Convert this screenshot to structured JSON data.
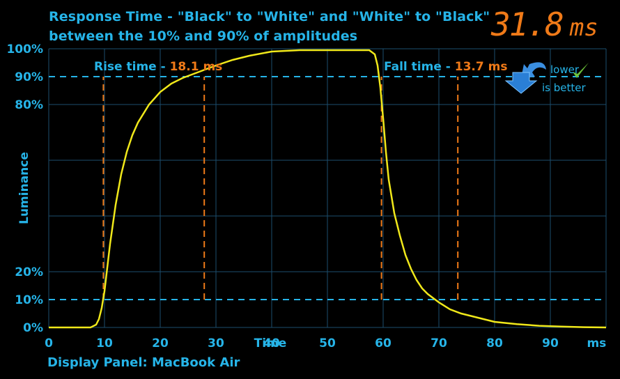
{
  "header": {
    "title_line1": "Response Time - \"Black\" to \"White\" and \"White\" to \"Black\"",
    "title_line2": "between the 10% and 90% of amplitudes",
    "readout_value": "31.8",
    "readout_unit": "ms"
  },
  "footer": {
    "panel_label": "Display Panel: MacBook Air"
  },
  "badge": {
    "line1": "lower",
    "line2": "is better",
    "icon": "down-arrow-icon",
    "check": "check-icon"
  },
  "annotations": {
    "rise_label": "Rise time - ",
    "rise_value": "18.1 ms",
    "fall_label": "Fall time - ",
    "fall_value": "13.7 ms"
  },
  "colors": {
    "background": "#000000",
    "axis_text": "#26b4e8",
    "grid": "#1c4e6e",
    "threshold_lines": "#26b4e8",
    "curve": "#f0e81a",
    "markers": "#f07a18"
  },
  "chart_data": {
    "type": "line",
    "title": "Response Time - \"Black\" to \"White\" and \"White\" to \"Black\" between the 10% and 90% of amplitudes",
    "xlabel": "Time",
    "ylabel": "Luminance",
    "xlim": [
      0,
      100
    ],
    "ylim": [
      0,
      100
    ],
    "x_ticks": [
      "0",
      "10",
      "20",
      "30",
      "40",
      "50",
      "60",
      "70",
      "80",
      "90",
      "ms"
    ],
    "y_ticks": [
      "0%",
      "10%",
      "20%",
      "80%",
      "90%",
      "100%"
    ],
    "grid": true,
    "threshold_lines": [
      10,
      90
    ],
    "markers_x": [
      9.8,
      27.9,
      59.7,
      73.4
    ],
    "series": [
      {
        "x": [
          0,
          7.5,
          8.5,
          9,
          9.5,
          10,
          11,
          12,
          13,
          14,
          15,
          16,
          18,
          20,
          22,
          24,
          26,
          28,
          30,
          33,
          36,
          40,
          45,
          50,
          55,
          57.5,
          58.5,
          59,
          59.5,
          60,
          60.5,
          61,
          62,
          63,
          64,
          65,
          66,
          67,
          68,
          70,
          72,
          74,
          76,
          78,
          80,
          84,
          88,
          92,
          96,
          100
        ],
        "y": [
          0,
          0,
          1,
          3,
          7,
          13,
          30,
          44,
          55,
          63,
          69,
          73.5,
          80,
          84.5,
          87.5,
          89.5,
          91,
          92.5,
          94,
          96,
          97.5,
          99,
          99.5,
          99.5,
          99.5,
          99.5,
          98,
          94,
          86,
          75,
          63,
          53,
          41,
          33,
          26,
          21,
          17,
          14,
          12,
          9,
          6.5,
          5,
          4,
          3,
          2,
          1.2,
          0.6,
          0.3,
          0.1,
          0
        ]
      }
    ]
  }
}
